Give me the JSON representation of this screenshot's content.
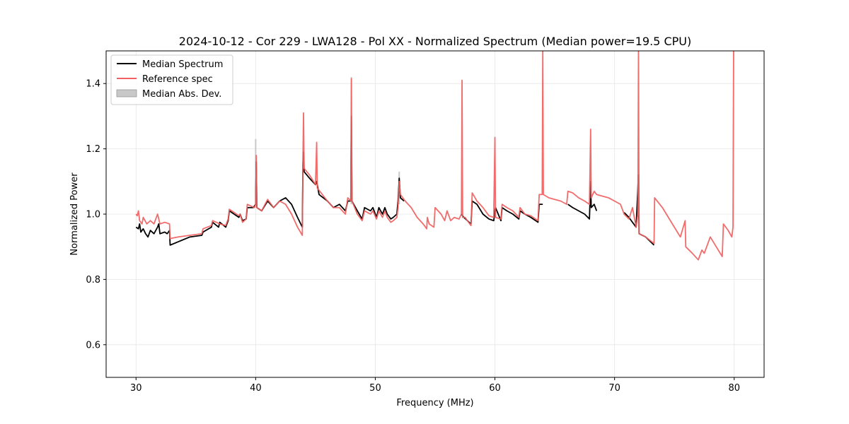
{
  "chart_data": {
    "type": "line",
    "title": "2024-10-12 - Cor 229 - LWA128 - Pol XX - Normalized Spectrum (Median power=19.5 CPU)",
    "xlabel": "Frequency (MHz)",
    "ylabel": "Normalized Power",
    "xlim": [
      27.5,
      82.5
    ],
    "ylim": [
      0.5,
      1.5
    ],
    "xticks": [
      30,
      40,
      50,
      60,
      70,
      80
    ],
    "yticks": [
      0.6,
      0.8,
      1.0,
      1.2,
      1.4
    ],
    "xtick_labels": [
      "30",
      "40",
      "50",
      "60",
      "70",
      "80"
    ],
    "ytick_labels": [
      "0.6",
      "0.8",
      "1.0",
      "1.2",
      "1.4"
    ],
    "grid": true,
    "legend_position": "top-left",
    "colors": {
      "median": "#000000",
      "reference": "#f06060",
      "mad": "#c8c8c8"
    },
    "series": [
      {
        "name": "Median Spectrum",
        "color": "#000000",
        "segments": [
          [
            [
              30.0,
              0.96
            ],
            [
              30.2,
              0.955
            ],
            [
              30.3,
              0.97
            ],
            [
              30.4,
              0.945
            ],
            [
              30.6,
              0.955
            ],
            [
              30.8,
              0.94
            ],
            [
              31.0,
              0.93
            ],
            [
              31.2,
              0.95
            ],
            [
              31.5,
              0.94
            ],
            [
              31.8,
              0.96
            ],
            [
              31.9,
              0.97
            ],
            [
              32.0,
              0.94
            ],
            [
              32.4,
              0.945
            ],
            [
              32.6,
              0.94
            ],
            [
              32.8,
              0.95
            ],
            [
              32.85,
              0.905
            ],
            [
              33.5,
              0.915
            ],
            [
              34.5,
              0.93
            ],
            [
              35.5,
              0.935
            ],
            [
              35.6,
              0.945
            ],
            [
              36.3,
              0.96
            ],
            [
              36.4,
              0.975
            ],
            [
              36.9,
              0.96
            ],
            [
              37.0,
              0.975
            ],
            [
              37.5,
              0.96
            ],
            [
              37.7,
              0.98
            ],
            [
              37.8,
              1.01
            ],
            [
              38.6,
              0.99
            ],
            [
              38.7,
              1.0
            ],
            [
              38.9,
              0.98
            ],
            [
              39.2,
              0.985
            ],
            [
              39.3,
              1.02
            ],
            [
              39.8,
              1.02
            ],
            [
              40.0,
              1.03
            ],
            [
              40.05,
              1.16
            ],
            [
              40.1,
              1.02
            ],
            [
              40.5,
              1.01
            ],
            [
              41.0,
              1.04
            ],
            [
              41.5,
              1.02
            ],
            [
              42.0,
              1.04
            ],
            [
              42.5,
              1.05
            ],
            [
              43.0,
              1.03
            ],
            [
              43.5,
              0.99
            ],
            [
              43.9,
              0.96
            ],
            [
              43.95,
              1.15
            ],
            [
              44.0,
              1.19
            ],
            [
              44.05,
              1.13
            ],
            [
              44.5,
              1.11
            ],
            [
              45.0,
              1.09
            ],
            [
              45.1,
              1.1
            ],
            [
              45.3,
              1.06
            ],
            [
              46.0,
              1.04
            ],
            [
              46.5,
              1.02
            ],
            [
              47.0,
              1.03
            ],
            [
              47.5,
              1.01
            ],
            [
              47.7,
              1.04
            ],
            [
              47.95,
              1.04
            ],
            [
              48.0,
              1.3
            ],
            [
              48.05,
              1.04
            ],
            [
              48.5,
              1.01
            ],
            [
              48.9,
              0.985
            ],
            [
              49.1,
              1.02
            ],
            [
              49.6,
              1.01
            ],
            [
              49.8,
              1.02
            ],
            [
              50.1,
              0.99
            ],
            [
              50.3,
              1.02
            ],
            [
              50.6,
              1.0
            ],
            [
              50.8,
              1.02
            ],
            [
              51.0,
              1.0
            ],
            [
              51.3,
              0.985
            ],
            [
              51.5,
              0.99
            ],
            [
              51.8,
              1.0
            ],
            [
              51.9,
              1.04
            ],
            [
              52.0,
              1.11
            ],
            [
              52.1,
              1.05
            ],
            [
              52.4,
              1.04
            ]
          ],
          [
            [
              57.2,
              1.0
            ],
            [
              57.4,
              0.99
            ],
            [
              58.0,
              0.97
            ],
            [
              58.1,
              1.04
            ],
            [
              58.5,
              1.03
            ],
            [
              59.0,
              1.0
            ],
            [
              59.5,
              0.985
            ],
            [
              59.9,
              0.98
            ],
            [
              60.0,
              1.01
            ],
            [
              60.05,
              1.02
            ],
            [
              60.5,
              0.98
            ],
            [
              60.6,
              1.02
            ],
            [
              61.0,
              1.01
            ],
            [
              61.5,
              1.0
            ],
            [
              62.0,
              0.985
            ],
            [
              62.1,
              1.01
            ],
            [
              62.5,
              1.0
            ],
            [
              63.0,
              0.99
            ],
            [
              63.6,
              0.975
            ],
            [
              63.7,
              1.03
            ],
            [
              64.0,
              1.03
            ]
          ],
          [
            [
              66.1,
              1.03
            ],
            [
              66.5,
              1.02
            ],
            [
              67.0,
              1.01
            ],
            [
              67.5,
              1.0
            ],
            [
              67.9,
              0.985
            ],
            [
              68.0,
              1.1
            ],
            [
              68.05,
              1.02
            ],
            [
              68.3,
              1.03
            ],
            [
              68.5,
              1.01
            ]
          ],
          [
            [
              70.8,
              1.005
            ],
            [
              71.2,
              0.99
            ],
            [
              71.8,
              0.96
            ],
            [
              72.0,
              1.12
            ],
            [
              72.05,
              0.94
            ],
            [
              72.6,
              0.93
            ],
            [
              73.3,
              0.905
            ]
          ]
        ]
      },
      {
        "name": "Reference spec",
        "color": "#f06060",
        "segments": [
          [
            [
              30.0,
              1.0
            ],
            [
              30.1,
              0.995
            ],
            [
              30.2,
              1.01
            ],
            [
              30.3,
              0.98
            ],
            [
              30.5,
              0.97
            ],
            [
              30.6,
              0.99
            ],
            [
              30.9,
              0.97
            ],
            [
              31.2,
              0.98
            ],
            [
              31.5,
              0.97
            ],
            [
              31.8,
              1.0
            ],
            [
              32.0,
              0.97
            ],
            [
              32.4,
              0.975
            ],
            [
              32.8,
              0.97
            ],
            [
              32.85,
              0.925
            ],
            [
              33.5,
              0.93
            ],
            [
              34.5,
              0.935
            ],
            [
              35.5,
              0.94
            ],
            [
              35.6,
              0.955
            ],
            [
              36.3,
              0.965
            ],
            [
              36.4,
              0.98
            ],
            [
              37.0,
              0.97
            ],
            [
              37.5,
              0.965
            ],
            [
              37.7,
              0.985
            ],
            [
              37.8,
              1.015
            ],
            [
              38.6,
              0.995
            ],
            [
              38.7,
              1.0
            ],
            [
              38.9,
              0.975
            ],
            [
              39.2,
              0.985
            ],
            [
              39.3,
              1.03
            ],
            [
              39.9,
              1.02
            ],
            [
              40.0,
              1.03
            ],
            [
              40.05,
              1.18
            ],
            [
              40.1,
              1.02
            ],
            [
              40.5,
              1.01
            ],
            [
              41.0,
              1.045
            ],
            [
              41.5,
              1.02
            ],
            [
              42.0,
              1.04
            ],
            [
              42.5,
              1.03
            ],
            [
              43.0,
              1.0
            ],
            [
              43.5,
              0.96
            ],
            [
              43.9,
              0.935
            ],
            [
              43.95,
              1.16
            ],
            [
              44.0,
              1.31
            ],
            [
              44.05,
              1.14
            ],
            [
              44.5,
              1.12
            ],
            [
              45.0,
              1.09
            ],
            [
              45.1,
              1.22
            ],
            [
              45.15,
              1.08
            ],
            [
              46.0,
              1.04
            ],
            [
              46.5,
              1.02
            ],
            [
              47.0,
              1.02
            ],
            [
              47.5,
              1.0
            ],
            [
              47.7,
              1.05
            ],
            [
              47.95,
              1.04
            ],
            [
              48.0,
              1.415
            ],
            [
              48.05,
              1.04
            ],
            [
              48.5,
              1.0
            ],
            [
              48.9,
              0.98
            ],
            [
              49.1,
              1.01
            ],
            [
              49.6,
              1.0
            ],
            [
              49.8,
              1.01
            ],
            [
              50.1,
              0.985
            ],
            [
              50.3,
              1.01
            ],
            [
              50.6,
              0.99
            ],
            [
              50.8,
              1.01
            ],
            [
              51.0,
              0.99
            ],
            [
              51.3,
              0.975
            ],
            [
              51.5,
              0.98
            ],
            [
              51.8,
              0.99
            ],
            [
              51.9,
              1.02
            ],
            [
              52.0,
              1.1
            ],
            [
              52.1,
              1.06
            ],
            [
              52.5,
              1.04
            ],
            [
              53.0,
              1.02
            ],
            [
              53.5,
              0.99
            ],
            [
              54.0,
              0.97
            ],
            [
              54.3,
              0.955
            ],
            [
              54.35,
              0.99
            ],
            [
              54.5,
              0.97
            ],
            [
              54.9,
              0.96
            ],
            [
              55.0,
              1.02
            ],
            [
              55.5,
              1.0
            ],
            [
              55.8,
              0.98
            ],
            [
              56.0,
              1.01
            ],
            [
              56.3,
              0.98
            ],
            [
              56.6,
              0.99
            ],
            [
              57.0,
              0.985
            ],
            [
              57.2,
              1.0
            ],
            [
              57.25,
              1.41
            ],
            [
              57.3,
              0.99
            ],
            [
              57.5,
              0.99
            ],
            [
              58.0,
              0.965
            ],
            [
              58.1,
              1.065
            ],
            [
              58.5,
              1.04
            ],
            [
              59.0,
              1.02
            ],
            [
              59.5,
              0.995
            ],
            [
              59.9,
              0.99
            ],
            [
              60.0,
              1.235
            ],
            [
              60.05,
              0.99
            ],
            [
              60.5,
              0.985
            ],
            [
              60.6,
              1.03
            ],
            [
              61.0,
              1.02
            ],
            [
              61.5,
              1.01
            ],
            [
              62.0,
              0.99
            ],
            [
              62.1,
              1.02
            ],
            [
              62.5,
              1.0
            ],
            [
              63.0,
              0.995
            ],
            [
              63.6,
              0.98
            ],
            [
              63.7,
              1.06
            ],
            [
              63.95,
              1.06
            ],
            [
              64.0,
              1.5
            ],
            [
              64.05,
              1.06
            ],
            [
              64.5,
              1.05
            ],
            [
              65.0,
              1.045
            ],
            [
              65.5,
              1.04
            ],
            [
              66.0,
              1.03
            ],
            [
              66.1,
              1.07
            ],
            [
              66.5,
              1.065
            ],
            [
              67.0,
              1.05
            ],
            [
              67.5,
              1.04
            ],
            [
              67.9,
              1.03
            ],
            [
              68.0,
              1.26
            ],
            [
              68.05,
              1.05
            ],
            [
              68.3,
              1.07
            ],
            [
              68.5,
              1.06
            ],
            [
              69.0,
              1.055
            ],
            [
              69.5,
              1.05
            ],
            [
              70.0,
              1.04
            ],
            [
              70.5,
              1.03
            ],
            [
              70.8,
              1.0
            ],
            [
              71.2,
              0.985
            ],
            [
              71.5,
              1.02
            ],
            [
              71.8,
              0.96
            ],
            [
              71.95,
              1.0
            ],
            [
              72.0,
              1.5
            ],
            [
              72.05,
              0.94
            ],
            [
              72.6,
              0.93
            ],
            [
              73.3,
              0.91
            ],
            [
              73.35,
              1.05
            ],
            [
              74.0,
              1.02
            ],
            [
              75.0,
              0.96
            ],
            [
              75.5,
              0.93
            ],
            [
              75.9,
              0.98
            ],
            [
              75.95,
              0.9
            ],
            [
              76.5,
              0.88
            ],
            [
              77.0,
              0.86
            ],
            [
              77.3,
              0.89
            ],
            [
              77.5,
              0.88
            ],
            [
              78.0,
              0.93
            ],
            [
              78.5,
              0.9
            ],
            [
              79.0,
              0.87
            ],
            [
              79.1,
              0.97
            ],
            [
              79.5,
              0.95
            ],
            [
              79.8,
              0.93
            ],
            [
              79.9,
              0.96
            ],
            [
              79.95,
              1.5
            ],
            [
              80.0,
              1.5
            ]
          ]
        ]
      }
    ],
    "mad_spikes": [
      {
        "x": 40.0,
        "y": 1.23
      },
      {
        "x": 48.0,
        "y": 1.42
      },
      {
        "x": 52.0,
        "y": 1.13
      }
    ]
  },
  "legend": {
    "items": [
      {
        "label": "Median Spectrum"
      },
      {
        "label": "Reference spec"
      },
      {
        "label": "Median Abs. Dev."
      }
    ]
  }
}
